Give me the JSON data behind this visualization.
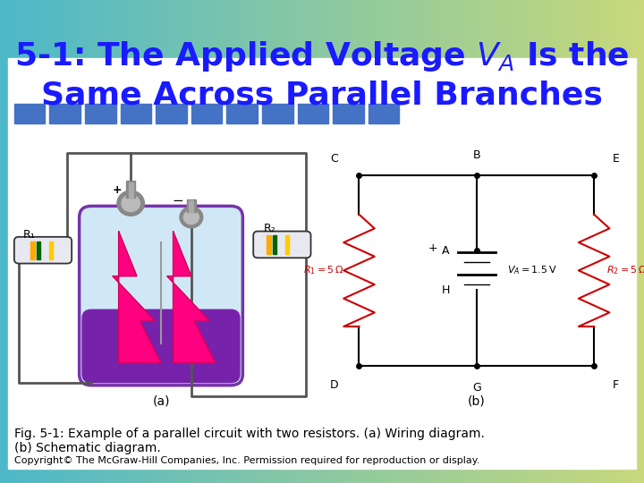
{
  "title_text": "5-1: The Applied Voltage $V_A$ Is the\nSame Across Parallel Branches",
  "title_color": "#1a1aff",
  "title_fontsize": 26,
  "bg_color": "#ffffff",
  "teal_color": "#4db8c8",
  "olive_color": "#c8d87a",
  "blue_sq_color": "#4472c4",
  "caption_line1": "Fig. 5-1: Example of a parallel circuit with two resistors. (a) Wiring diagram.",
  "caption_line2": "(b) Schematic diagram.",
  "caption_copyright": "Copyright© The McGraw-Hill Companies, Inc. Permission required for reproduction or display.",
  "caption_fontsize": 10,
  "copyright_fontsize": 8,
  "wire_color": "#000000",
  "resistor_color": "#cc0000",
  "node_dot_color": "#000000"
}
